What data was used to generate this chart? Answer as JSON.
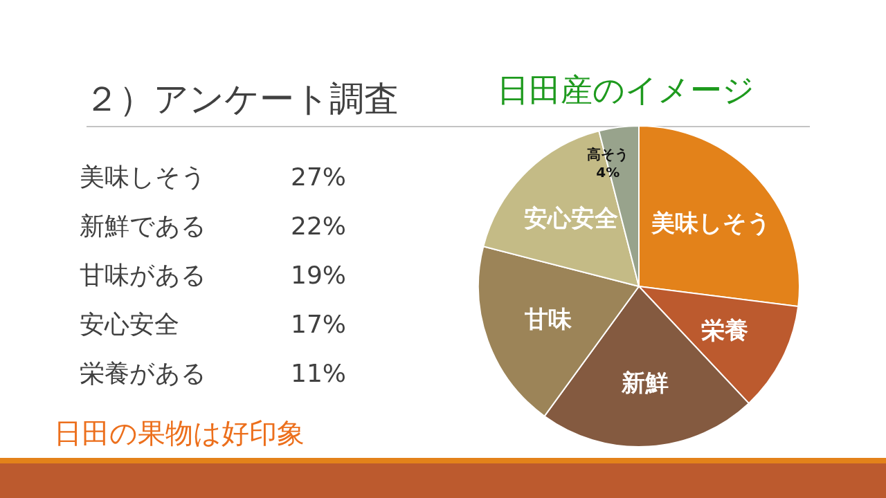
{
  "chart_data": {
    "type": "pie",
    "title": "２）アンケート調査",
    "subtitle": "日田産のイメージ",
    "categories": [
      "美味しそう",
      "栄養",
      "新鮮",
      "甘味",
      "安心安全",
      "高そう"
    ],
    "values": [
      27,
      11,
      22,
      19,
      17,
      4
    ],
    "colors": [
      "#e3821a",
      "#bc5a2e",
      "#845a40",
      "#9c8458",
      "#c4bb86",
      "#98a38c"
    ],
    "value_labels": [
      null,
      null,
      null,
      null,
      null,
      "4%"
    ],
    "annotations": [
      "美味しそう 27%",
      "新鮮である 22%",
      "甘味がある 19%",
      "安心安全 17%",
      "栄養がある 11%",
      "日田の果物は好印象"
    ]
  }
}
